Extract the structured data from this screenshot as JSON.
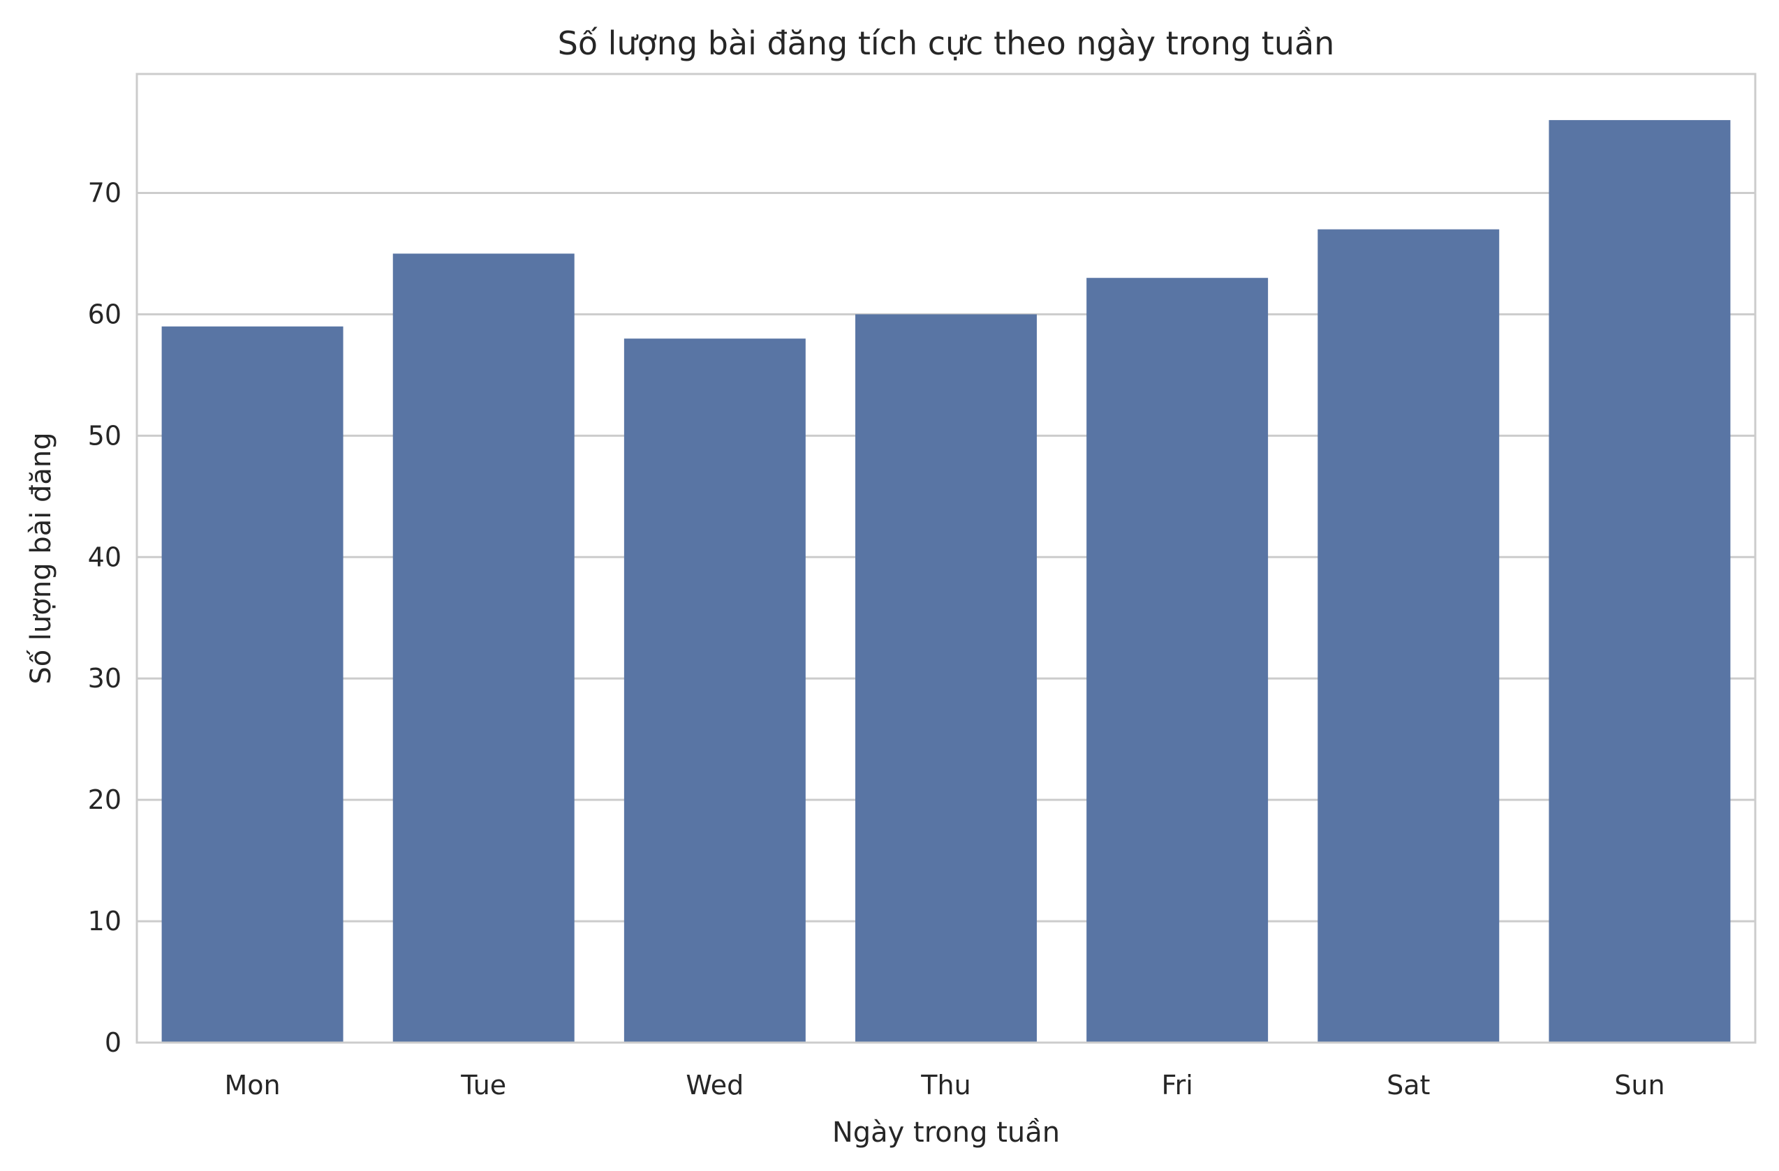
{
  "chart_data": {
    "type": "bar",
    "title": "Số lượng bài đăng tích cực theo ngày trong tuần",
    "xlabel": "Ngày trong tuần",
    "ylabel": "Số lượng bài đăng",
    "categories": [
      "Mon",
      "Tue",
      "Wed",
      "Thu",
      "Fri",
      "Sat",
      "Sun"
    ],
    "values": [
      59,
      65,
      58,
      60,
      63,
      67,
      76
    ],
    "ylim": [
      0,
      79.8
    ],
    "yticks": [
      0,
      10,
      20,
      30,
      40,
      50,
      60,
      70
    ],
    "ytick_labels": [
      "0",
      "10",
      "20",
      "30",
      "40",
      "50",
      "60",
      "70"
    ],
    "grid": "horizontal",
    "legend": "none",
    "colors": {
      "bar": "#5975a4",
      "grid": "#cccccc",
      "frame": "#cccccc",
      "text": "#262626",
      "background": "#ffffff"
    }
  }
}
